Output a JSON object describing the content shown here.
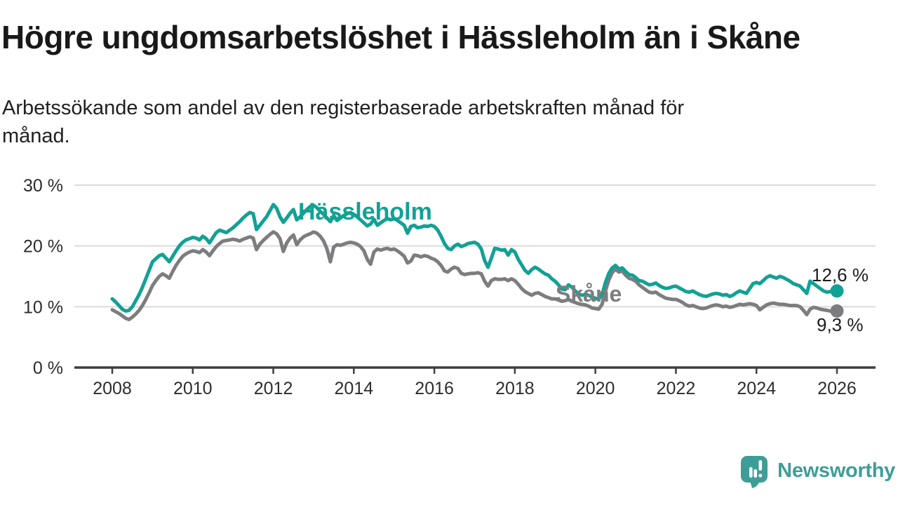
{
  "header": {
    "title": "Högre ungdomsarbetslöshet i Hässleholm än i Skåne",
    "subtitle_line1": "Arbetssökande som andel av den registerbaserade arbetskraften månad för",
    "subtitle_line2": "månad."
  },
  "chart_data": {
    "type": "line",
    "unit": "%",
    "x_resolution": "monthly",
    "x_start": "2008-01",
    "x_end": "2026-01",
    "grid": "horizontal",
    "legend_position": "inline-labels-on-lines",
    "colors": {
      "hassleholm": "#12a195",
      "skane": "#7d7d80",
      "gridline": "#dbdbdb",
      "axis": "#3f3f41"
    },
    "y_axis": {
      "ylim": [
        0,
        30
      ],
      "ticks": [
        {
          "value": 30,
          "label": "30 %"
        },
        {
          "value": 20,
          "label": "20 %"
        },
        {
          "value": 10,
          "label": "10 %"
        },
        {
          "value": 0,
          "label": "0 %"
        }
      ]
    },
    "x_axis": {
      "tick_years": [
        2008,
        2010,
        2012,
        2014,
        2016,
        2018,
        2020,
        2022,
        2024,
        2026
      ]
    },
    "series": [
      {
        "id": "hassleholm",
        "name": "Hässleholm",
        "color": "#12a195",
        "end_label": "12,6 %",
        "end_value": 12.6,
        "values": [
          11.3,
          10.8,
          10.2,
          9.6,
          9.3,
          9.4,
          10.0,
          11.0,
          12.0,
          13.2,
          14.6,
          16.0,
          17.4,
          17.9,
          18.4,
          18.6,
          18.0,
          17.4,
          18.3,
          19.2,
          20.0,
          20.6,
          21.0,
          21.2,
          21.4,
          21.3,
          21.0,
          21.6,
          21.2,
          20.5,
          21.4,
          22.2,
          22.6,
          22.4,
          22.2,
          22.6,
          23.0,
          23.5,
          24.0,
          24.6,
          25.1,
          25.5,
          25.3,
          22.7,
          23.4,
          24.1,
          24.8,
          25.8,
          26.8,
          26.2,
          24.8,
          23.9,
          24.6,
          25.4,
          26.0,
          24.3,
          24.8,
          25.4,
          26.0,
          26.5,
          26.7,
          26.3,
          25.7,
          25.2,
          24.6,
          24.0,
          25.0,
          24.2,
          24.6,
          25.0,
          25.3,
          25.5,
          25.2,
          24.8,
          24.3,
          23.8,
          23.3,
          23.6,
          24.4,
          23.4,
          23.8,
          24.2,
          24.5,
          24.3,
          24.5,
          24.2,
          23.8,
          23.4,
          22.1,
          23.2,
          23.4,
          23.0,
          23.1,
          23.3,
          23.2,
          23.4,
          23.2,
          22.6,
          21.6,
          20.4,
          19.6,
          19.4,
          20.0,
          20.3,
          19.9,
          20.1,
          20.4,
          20.5,
          20.6,
          20.3,
          19.5,
          17.6,
          16.5,
          18.0,
          19.6,
          19.5,
          19.3,
          19.4,
          18.5,
          19.4,
          19.0,
          17.8,
          16.9,
          16.0,
          15.5,
          16.1,
          16.5,
          16.2,
          15.8,
          15.4,
          15.2,
          14.6,
          14.2,
          13.6,
          12.9,
          12.8,
          13.6,
          13.2,
          12.6,
          12.1,
          11.9,
          12.0,
          11.9,
          11.6,
          11.4,
          11.2,
          12.0,
          14.0,
          15.5,
          16.4,
          16.8,
          16.2,
          16.4,
          15.8,
          15.3,
          15.2,
          14.8,
          14.3,
          14.2,
          13.9,
          13.6,
          13.7,
          13.9,
          13.5,
          13.2,
          13.0,
          13.1,
          13.3,
          13.4,
          13.1,
          12.8,
          12.5,
          12.4,
          12.6,
          12.3,
          12.0,
          11.8,
          11.7,
          11.9,
          12.1,
          12.2,
          12.1,
          11.9,
          12.0,
          11.7,
          11.9,
          12.3,
          12.6,
          12.4,
          12.2,
          13.0,
          13.8,
          14.0,
          13.8,
          14.3,
          14.8,
          15.1,
          14.9,
          14.7,
          15.0,
          14.8,
          14.5,
          14.2,
          13.8,
          13.6,
          13.4,
          12.8,
          12.2,
          14.2,
          13.8,
          13.4,
          13.0,
          12.6,
          12.4,
          12.5,
          12.5,
          12.6
        ]
      },
      {
        "id": "skane",
        "name": "Skåne",
        "color": "#7d7d80",
        "end_label": "9,3 %",
        "end_value": 9.3,
        "values": [
          9.5,
          9.2,
          8.9,
          8.5,
          8.1,
          7.9,
          8.3,
          8.8,
          9.4,
          10.2,
          11.2,
          12.3,
          13.5,
          14.3,
          15.0,
          15.4,
          15.1,
          14.7,
          15.8,
          16.8,
          17.6,
          18.3,
          18.7,
          19.0,
          19.2,
          19.1,
          18.9,
          19.4,
          19.0,
          18.4,
          19.2,
          19.9,
          20.4,
          20.8,
          20.9,
          21.0,
          21.1,
          21.0,
          20.8,
          21.1,
          21.3,
          21.5,
          21.3,
          19.4,
          20.3,
          20.9,
          21.4,
          21.9,
          22.3,
          22.0,
          21.2,
          19.1,
          20.5,
          21.3,
          21.8,
          20.2,
          21.0,
          21.5,
          21.8,
          22.0,
          22.3,
          22.1,
          21.6,
          20.8,
          19.5,
          17.4,
          19.8,
          20.2,
          20.1,
          20.3,
          20.5,
          20.6,
          20.5,
          20.3,
          19.9,
          19.2,
          17.8,
          17.0,
          19.0,
          19.5,
          19.3,
          19.5,
          19.6,
          19.4,
          19.5,
          19.2,
          18.8,
          18.3,
          17.2,
          17.5,
          18.5,
          18.4,
          18.2,
          18.4,
          18.3,
          18.0,
          17.8,
          17.4,
          16.8,
          15.9,
          15.7,
          16.2,
          16.5,
          16.3,
          15.5,
          15.3,
          15.4,
          15.5,
          15.5,
          15.6,
          15.4,
          14.2,
          13.4,
          14.3,
          14.6,
          14.5,
          14.5,
          14.6,
          14.3,
          14.6,
          14.3,
          13.7,
          13.0,
          12.5,
          12.2,
          11.9,
          12.2,
          12.3,
          12.0,
          11.7,
          11.5,
          11.3,
          11.3,
          11.1,
          10.9,
          11.0,
          11.2,
          10.9,
          10.7,
          10.5,
          10.4,
          10.3,
          10.1,
          9.8,
          9.7,
          9.6,
          10.4,
          12.6,
          14.4,
          15.6,
          16.2,
          15.7,
          15.9,
          15.2,
          14.7,
          14.5,
          14.2,
          13.6,
          13.2,
          12.8,
          12.4,
          12.3,
          12.4,
          12.0,
          11.7,
          11.4,
          11.3,
          11.2,
          11.2,
          11.0,
          10.7,
          10.3,
          10.1,
          10.2,
          10.0,
          9.8,
          9.7,
          9.8,
          10.0,
          10.2,
          10.3,
          10.2,
          10.0,
          10.1,
          9.9,
          10.0,
          10.2,
          10.4,
          10.3,
          10.4,
          10.5,
          10.4,
          10.2,
          9.5,
          9.9,
          10.3,
          10.5,
          10.6,
          10.5,
          10.4,
          10.4,
          10.3,
          10.2,
          10.2,
          10.2,
          10.0,
          9.4,
          8.7,
          9.6,
          9.9,
          9.8,
          9.6,
          9.5,
          9.4,
          9.3,
          9.3,
          9.3
        ]
      }
    ]
  },
  "logo": {
    "brand": "Newsworthy",
    "icon": "newsworthy-bubble-barchart-icon",
    "color": "#3f9d98"
  }
}
